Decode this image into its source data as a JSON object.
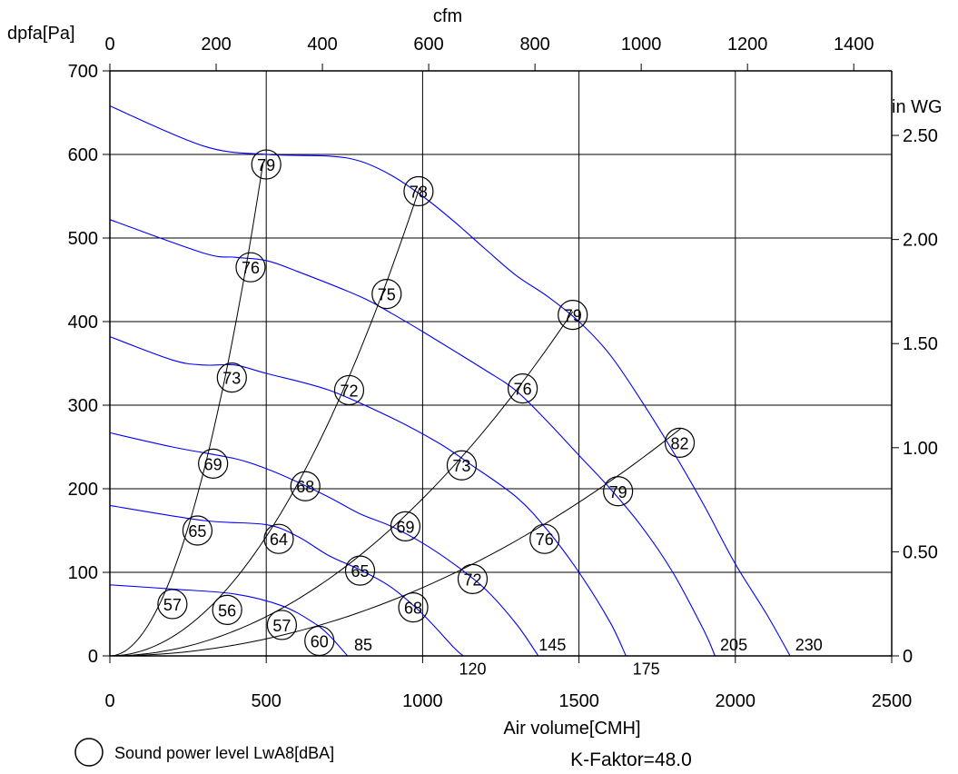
{
  "chart_data": {
    "type": "line",
    "x_axis": {
      "label": "Air volume[CMH]",
      "range": [
        0,
        2500
      ],
      "ticks": [
        0,
        500,
        1000,
        1500,
        2000,
        2500
      ]
    },
    "x2_axis": {
      "label": "cfm",
      "range": [
        0,
        1471.4
      ],
      "ticks": [
        0,
        200,
        400,
        600,
        800,
        1000,
        1200,
        1400
      ]
    },
    "y_axis": {
      "label": "dpfa[Pa]",
      "range": [
        0,
        700
      ],
      "ticks": [
        0,
        100,
        200,
        300,
        400,
        500,
        600,
        700
      ]
    },
    "y2_axis": {
      "label": "in WG",
      "range": [
        0,
        2.81
      ],
      "ticks": [
        "0",
        "0.50",
        "1.00",
        "1.50",
        "2.00",
        "2.50"
      ],
      "tick_values": [
        0,
        0.5,
        1.0,
        1.5,
        2.0,
        2.5
      ]
    },
    "grid": true,
    "fan_curves": [
      {
        "label": "85",
        "points": [
          [
            0,
            85
          ],
          [
            200,
            80
          ],
          [
            400,
            74
          ],
          [
            550,
            60
          ],
          [
            650,
            40
          ],
          [
            700,
            25
          ],
          [
            760,
            0
          ]
        ]
      },
      {
        "label": "120",
        "points": [
          [
            0,
            180
          ],
          [
            300,
            162
          ],
          [
            500,
            157
          ],
          [
            600,
            143
          ],
          [
            700,
            120
          ],
          [
            800,
            103
          ],
          [
            900,
            82
          ],
          [
            1000,
            50
          ],
          [
            1100,
            10
          ],
          [
            1130,
            0
          ]
        ]
      },
      {
        "label": "145",
        "points": [
          [
            0,
            267
          ],
          [
            200,
            250
          ],
          [
            400,
            236
          ],
          [
            500,
            224
          ],
          [
            600,
            208
          ],
          [
            700,
            190
          ],
          [
            800,
            170
          ],
          [
            900,
            155
          ],
          [
            1000,
            135
          ],
          [
            1100,
            110
          ],
          [
            1200,
            80
          ],
          [
            1300,
            38
          ],
          [
            1370,
            0
          ]
        ]
      },
      {
        "label": "175",
        "points": [
          [
            0,
            382
          ],
          [
            200,
            354
          ],
          [
            300,
            348
          ],
          [
            400,
            348
          ],
          [
            500,
            338
          ],
          [
            700,
            318
          ],
          [
            900,
            285
          ],
          [
            1050,
            255
          ],
          [
            1150,
            230
          ],
          [
            1300,
            190
          ],
          [
            1400,
            150
          ],
          [
            1500,
            100
          ],
          [
            1600,
            40
          ],
          [
            1650,
            0
          ]
        ]
      },
      {
        "label": "205",
        "points": [
          [
            0,
            522
          ],
          [
            300,
            482
          ],
          [
            400,
            477
          ],
          [
            500,
            473
          ],
          [
            600,
            460
          ],
          [
            800,
            430
          ],
          [
            900,
            410
          ],
          [
            1000,
            388
          ],
          [
            1200,
            342
          ],
          [
            1300,
            317
          ],
          [
            1400,
            280
          ],
          [
            1500,
            240
          ],
          [
            1600,
            200
          ],
          [
            1700,
            155
          ],
          [
            1800,
            100
          ],
          [
            1900,
            30
          ],
          [
            1935,
            0
          ]
        ]
      },
      {
        "label": "230",
        "points": [
          [
            0,
            658
          ],
          [
            300,
            610
          ],
          [
            500,
            600
          ],
          [
            700,
            598
          ],
          [
            800,
            592
          ],
          [
            900,
            575
          ],
          [
            1000,
            550
          ],
          [
            1100,
            520
          ],
          [
            1200,
            487
          ],
          [
            1300,
            455
          ],
          [
            1400,
            430
          ],
          [
            1500,
            400
          ],
          [
            1600,
            360
          ],
          [
            1700,
            305
          ],
          [
            1800,
            245
          ],
          [
            1900,
            180
          ],
          [
            2000,
            110
          ],
          [
            2100,
            50
          ],
          [
            2175,
            0
          ]
        ]
      }
    ],
    "rpm_labels": [
      {
        "text": "85",
        "x": 810,
        "y": 13
      },
      {
        "text": "120",
        "x": 1160,
        "y": -16
      },
      {
        "text": "145",
        "x": 1415,
        "y": 13
      },
      {
        "text": "175",
        "x": 1715,
        "y": -16
      },
      {
        "text": "205",
        "x": 1995,
        "y": 13
      },
      {
        "text": "230",
        "x": 2235,
        "y": 13
      }
    ],
    "system_curves": [
      {
        "x_end": 490,
        "y_end": 590
      },
      {
        "x_end": 990,
        "y_end": 560
      },
      {
        "x_end": 1480,
        "y_end": 412
      },
      {
        "x_end": 1825,
        "y_end": 272
      }
    ],
    "sound_power_levels": [
      {
        "value": "79",
        "x": 500,
        "y": 588
      },
      {
        "value": "78",
        "x": 987,
        "y": 556
      },
      {
        "value": "76",
        "x": 450,
        "y": 465
      },
      {
        "value": "75",
        "x": 885,
        "y": 433
      },
      {
        "value": "79",
        "x": 1480,
        "y": 408
      },
      {
        "value": "73",
        "x": 390,
        "y": 333
      },
      {
        "value": "72",
        "x": 765,
        "y": 318
      },
      {
        "value": "76",
        "x": 1320,
        "y": 320
      },
      {
        "value": "82",
        "x": 1822,
        "y": 255
      },
      {
        "value": "69",
        "x": 330,
        "y": 230
      },
      {
        "value": "68",
        "x": 625,
        "y": 203
      },
      {
        "value": "73",
        "x": 1125,
        "y": 228
      },
      {
        "value": "79",
        "x": 1625,
        "y": 197
      },
      {
        "value": "65",
        "x": 280,
        "y": 150
      },
      {
        "value": "64",
        "x": 540,
        "y": 140
      },
      {
        "value": "69",
        "x": 945,
        "y": 155
      },
      {
        "value": "76",
        "x": 1390,
        "y": 140
      },
      {
        "value": "65",
        "x": 800,
        "y": 102
      },
      {
        "value": "72",
        "x": 1160,
        "y": 92
      },
      {
        "value": "57",
        "x": 200,
        "y": 62
      },
      {
        "value": "56",
        "x": 375,
        "y": 55
      },
      {
        "value": "57",
        "x": 550,
        "y": 37
      },
      {
        "value": "68",
        "x": 970,
        "y": 58
      },
      {
        "value": "60",
        "x": 670,
        "y": 18
      }
    ],
    "legend": {
      "text": "Sound power level LwA8[dBA]",
      "position": "bottom-left"
    },
    "k_factor": "K-Faktor=48.0",
    "colors": {
      "fan_curve": "#0000ff",
      "system_curve": "#000000",
      "grid": "#000000"
    }
  }
}
